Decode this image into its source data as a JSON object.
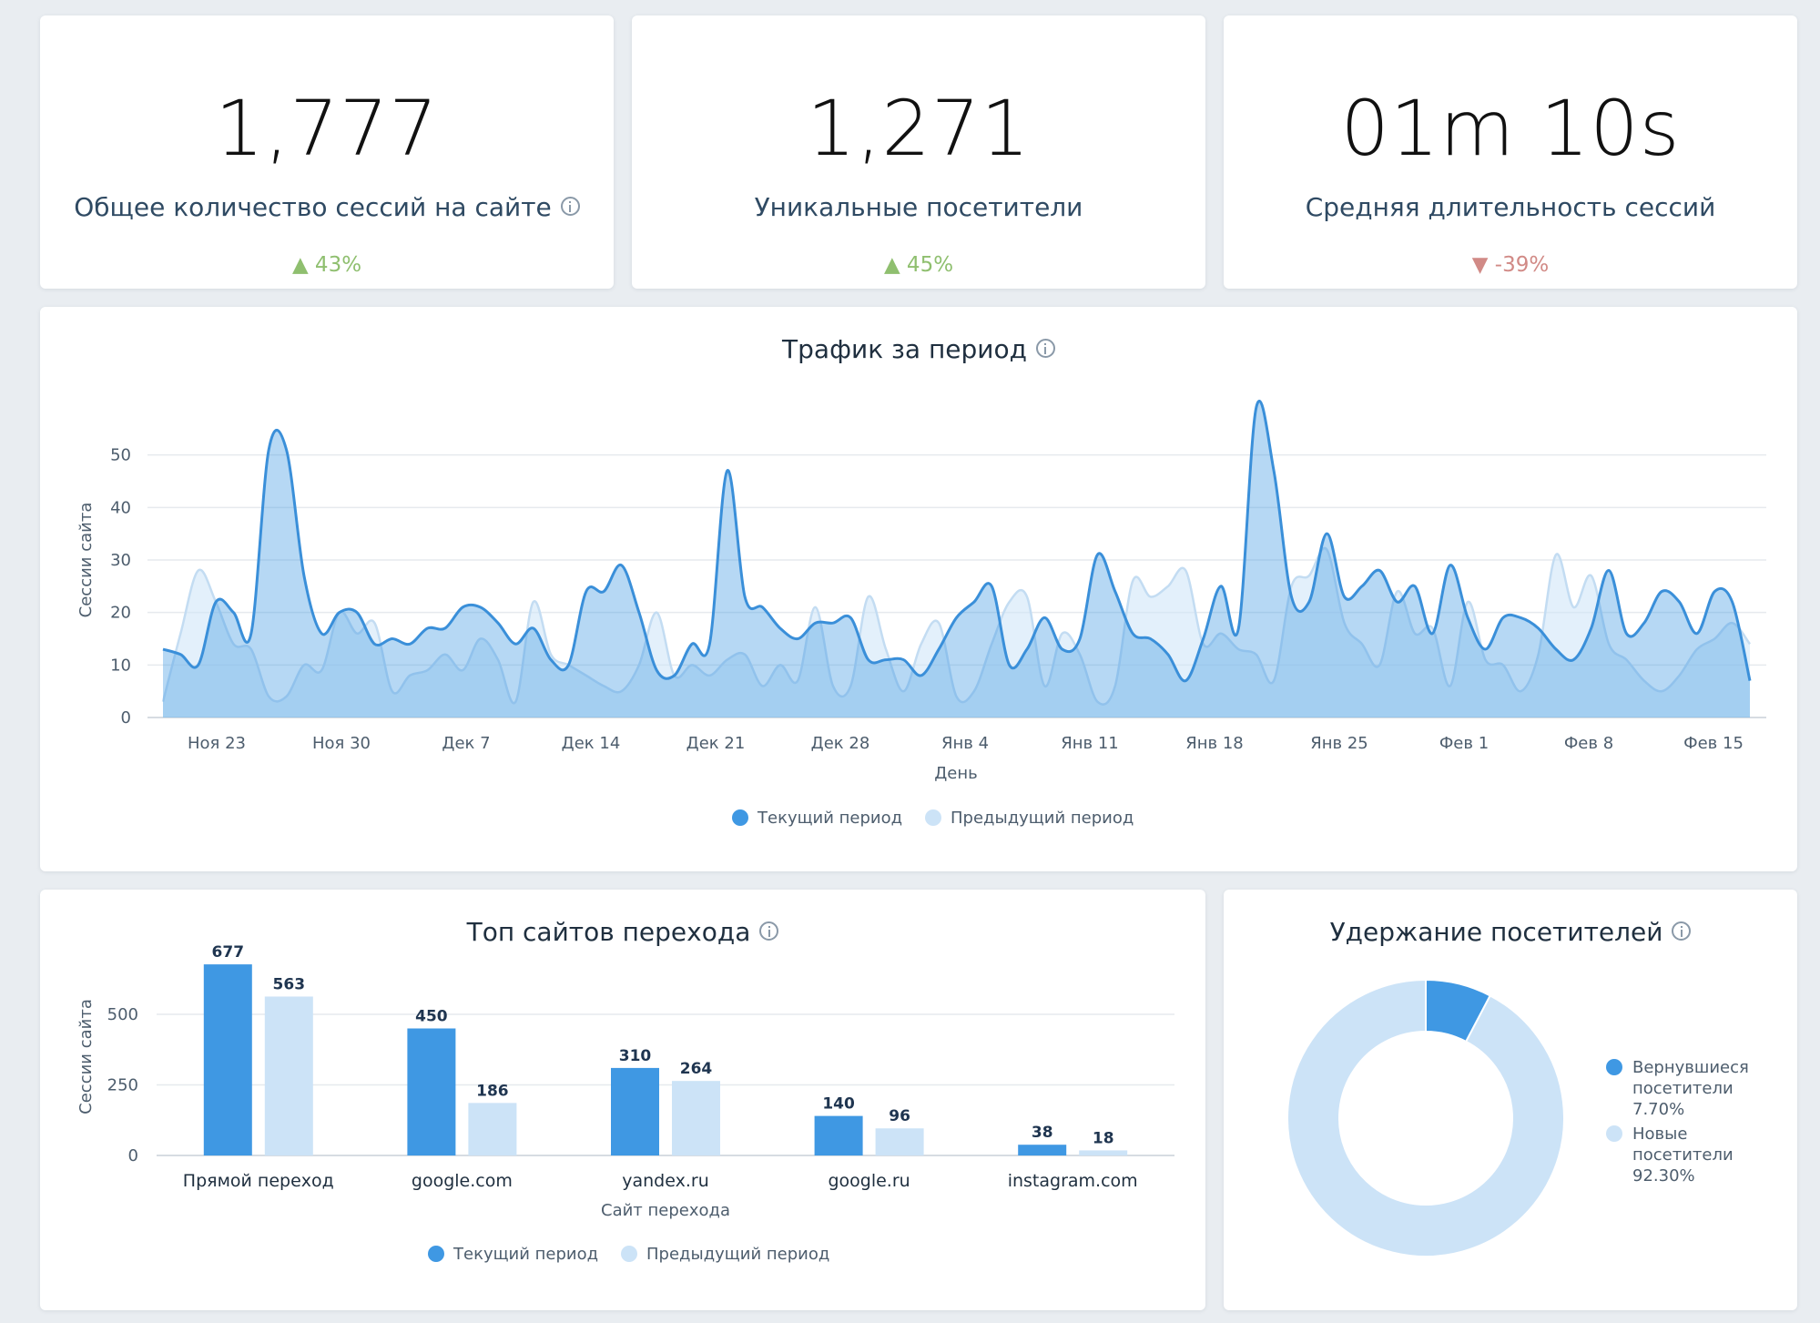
{
  "kpis": [
    {
      "value": "1,777",
      "label": "Общее количество сессий на сайте",
      "delta": "▲ 43%",
      "trend": "up",
      "icon": "info-icon"
    },
    {
      "value": "1,271",
      "label": "Уникальные посетители",
      "delta": "▲ 45%",
      "trend": "up"
    },
    {
      "value": "01m 10s",
      "label": "Средняя длительность сессий",
      "delta": "▼ -39%",
      "trend": "down"
    }
  ],
  "traffic": {
    "title": "Трафик за период",
    "icon": "info-icon"
  },
  "referrers": {
    "title": "Топ сайтов перехода",
    "icon": "info-icon"
  },
  "retention": {
    "title": "Удержание посетителей",
    "icon": "info-icon"
  },
  "colors": {
    "current": "#3f98e3",
    "previous": "#cce3f7",
    "up": "#8fbf6f",
    "down": "#d18a86"
  },
  "chart_data": [
    {
      "type": "area",
      "title": "Трафик за период",
      "xlabel": "День",
      "ylabel": "Сессии сайта",
      "ylim": [
        0,
        60
      ],
      "yticks": [
        0,
        10,
        20,
        30,
        40,
        50
      ],
      "xtick_labels": [
        "Ноя 23",
        "Ноя 30",
        "Дек 7",
        "Дек 14",
        "Дек 21",
        "Дек 28",
        "Янв 4",
        "Янв 11",
        "Янв 18",
        "Янв 25",
        "Фев 1",
        "Фев 8",
        "Фев 15"
      ],
      "grid": true,
      "legend": "bottom",
      "series": [
        {
          "name": "Текущий период",
          "color": "#3f98e3",
          "values": [
            13,
            12,
            10,
            22,
            20,
            16,
            51,
            51,
            27,
            16,
            20,
            20,
            14,
            15,
            14,
            17,
            17,
            21,
            21,
            18,
            14,
            17,
            11,
            10,
            24,
            24,
            29,
            20,
            9,
            8,
            14,
            14,
            47,
            23,
            21,
            17,
            15,
            18,
            18,
            19,
            11,
            11,
            11,
            8,
            13,
            19,
            22,
            25,
            10,
            13,
            19,
            13,
            15,
            31,
            24,
            16,
            15,
            12,
            7,
            15,
            25,
            17,
            59,
            47,
            23,
            22,
            35,
            23,
            25,
            28,
            22,
            25,
            16,
            29,
            19,
            13,
            19,
            19,
            17,
            13,
            11,
            17,
            28,
            16,
            18,
            24,
            22,
            16,
            24,
            22,
            7
          ]
        },
        {
          "name": "Предыдущий период",
          "color": "#cce3f7",
          "values": [
            3,
            16,
            28,
            22,
            14,
            13,
            4,
            4,
            10,
            9,
            20,
            16,
            18,
            5,
            8,
            9,
            12,
            9,
            15,
            11,
            3,
            22,
            12,
            10,
            8,
            6,
            5,
            10,
            20,
            8,
            10,
            8,
            11,
            12,
            6,
            10,
            7,
            21,
            6,
            6,
            23,
            13,
            5,
            14,
            18,
            4,
            5,
            14,
            22,
            23,
            6,
            16,
            12,
            3,
            6,
            26,
            23,
            25,
            28,
            14,
            16,
            13,
            12,
            7,
            25,
            27,
            32,
            18,
            14,
            10,
            24,
            16,
            17,
            6,
            22,
            11,
            10,
            5,
            12,
            31,
            21,
            27,
            14,
            11,
            7,
            5,
            8,
            13,
            15,
            18,
            14
          ]
        }
      ]
    },
    {
      "type": "bar",
      "title": "Топ сайтов перехода",
      "xlabel": "Сайт перехода",
      "ylabel": "Сессии сайта",
      "ylim": [
        0,
        700
      ],
      "yticks": [
        0,
        250,
        500
      ],
      "categories": [
        "Прямой переход",
        "google.com",
        "yandex.ru",
        "google.ru",
        "instagram.com"
      ],
      "grid": true,
      "legend": "bottom",
      "series": [
        {
          "name": "Текущий период",
          "color": "#3f98e3",
          "values": [
            677,
            450,
            310,
            140,
            38
          ]
        },
        {
          "name": "Предыдущий период",
          "color": "#cce3f7",
          "values": [
            563,
            186,
            264,
            96,
            18
          ]
        }
      ]
    },
    {
      "type": "pie",
      "title": "Удержание посетителей",
      "legend": "right",
      "slices": [
        {
          "label_line1": "Вернувшиеся",
          "label_line2": "посетители",
          "value_label": "7.70%",
          "value": 7.7,
          "color": "#3f98e3"
        },
        {
          "label_line1": "Новые",
          "label_line2": "посетители",
          "value_label": "92.30%",
          "value": 92.3,
          "color": "#cce3f7"
        }
      ]
    }
  ]
}
